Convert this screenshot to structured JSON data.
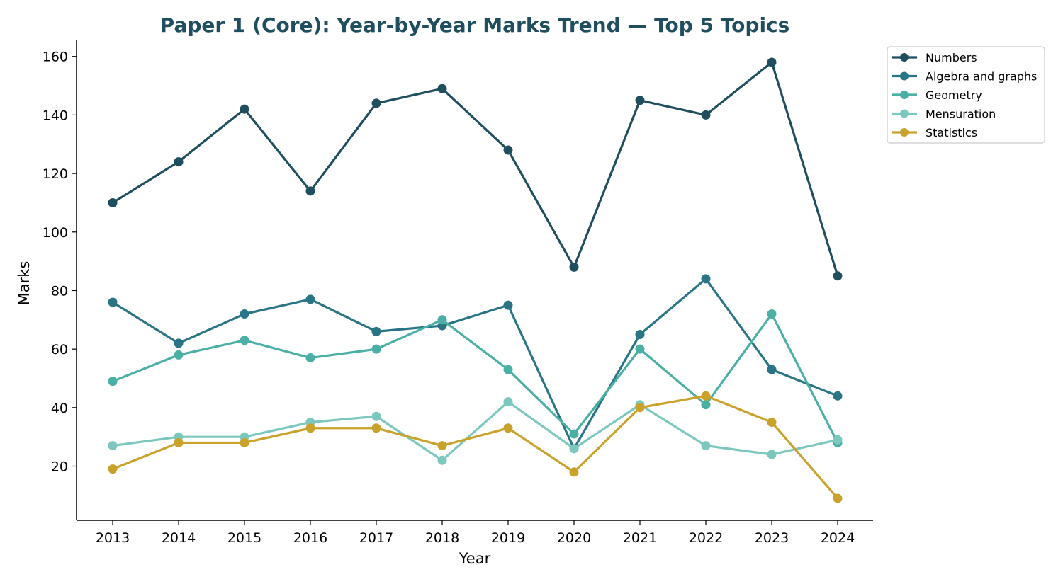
{
  "chart_data": {
    "type": "line",
    "title": "Paper 1 (Core): Year-by-Year Marks Trend — Top 5 Topics",
    "xlabel": "Year",
    "ylabel": "Marks",
    "x": [
      "2013",
      "2014",
      "2015",
      "2016",
      "2017",
      "2018",
      "2019",
      "2020",
      "2021",
      "2022",
      "2023",
      "2024"
    ],
    "yticks": [
      20,
      40,
      60,
      80,
      100,
      120,
      140,
      160
    ],
    "ylim": [
      1.5,
      165.5
    ],
    "grid": false,
    "legend_position": "upper-right-outside",
    "series": [
      {
        "name": "Numbers",
        "color": "#1f4e5f",
        "values": [
          110,
          124,
          142,
          114,
          144,
          149,
          128,
          88,
          145,
          140,
          158,
          85
        ]
      },
      {
        "name": "Algebra and graphs",
        "color": "#2a7585",
        "values": [
          76,
          62,
          72,
          77,
          66,
          68,
          75,
          26,
          65,
          84,
          53,
          44
        ]
      },
      {
        "name": "Geometry",
        "color": "#4aafa5",
        "values": [
          49,
          58,
          63,
          57,
          60,
          70,
          53,
          31,
          60,
          41,
          72,
          28
        ]
      },
      {
        "name": "Mensuration",
        "color": "#7cc8be",
        "values": [
          27,
          30,
          30,
          35,
          37,
          22,
          42,
          26,
          41,
          27,
          24,
          29
        ]
      },
      {
        "name": "Statistics",
        "color": "#c9a22b",
        "values": [
          19,
          28,
          28,
          33,
          33,
          27,
          33,
          18,
          40,
          44,
          35,
          9
        ]
      }
    ],
    "title_color": "#1f4e5f"
  }
}
